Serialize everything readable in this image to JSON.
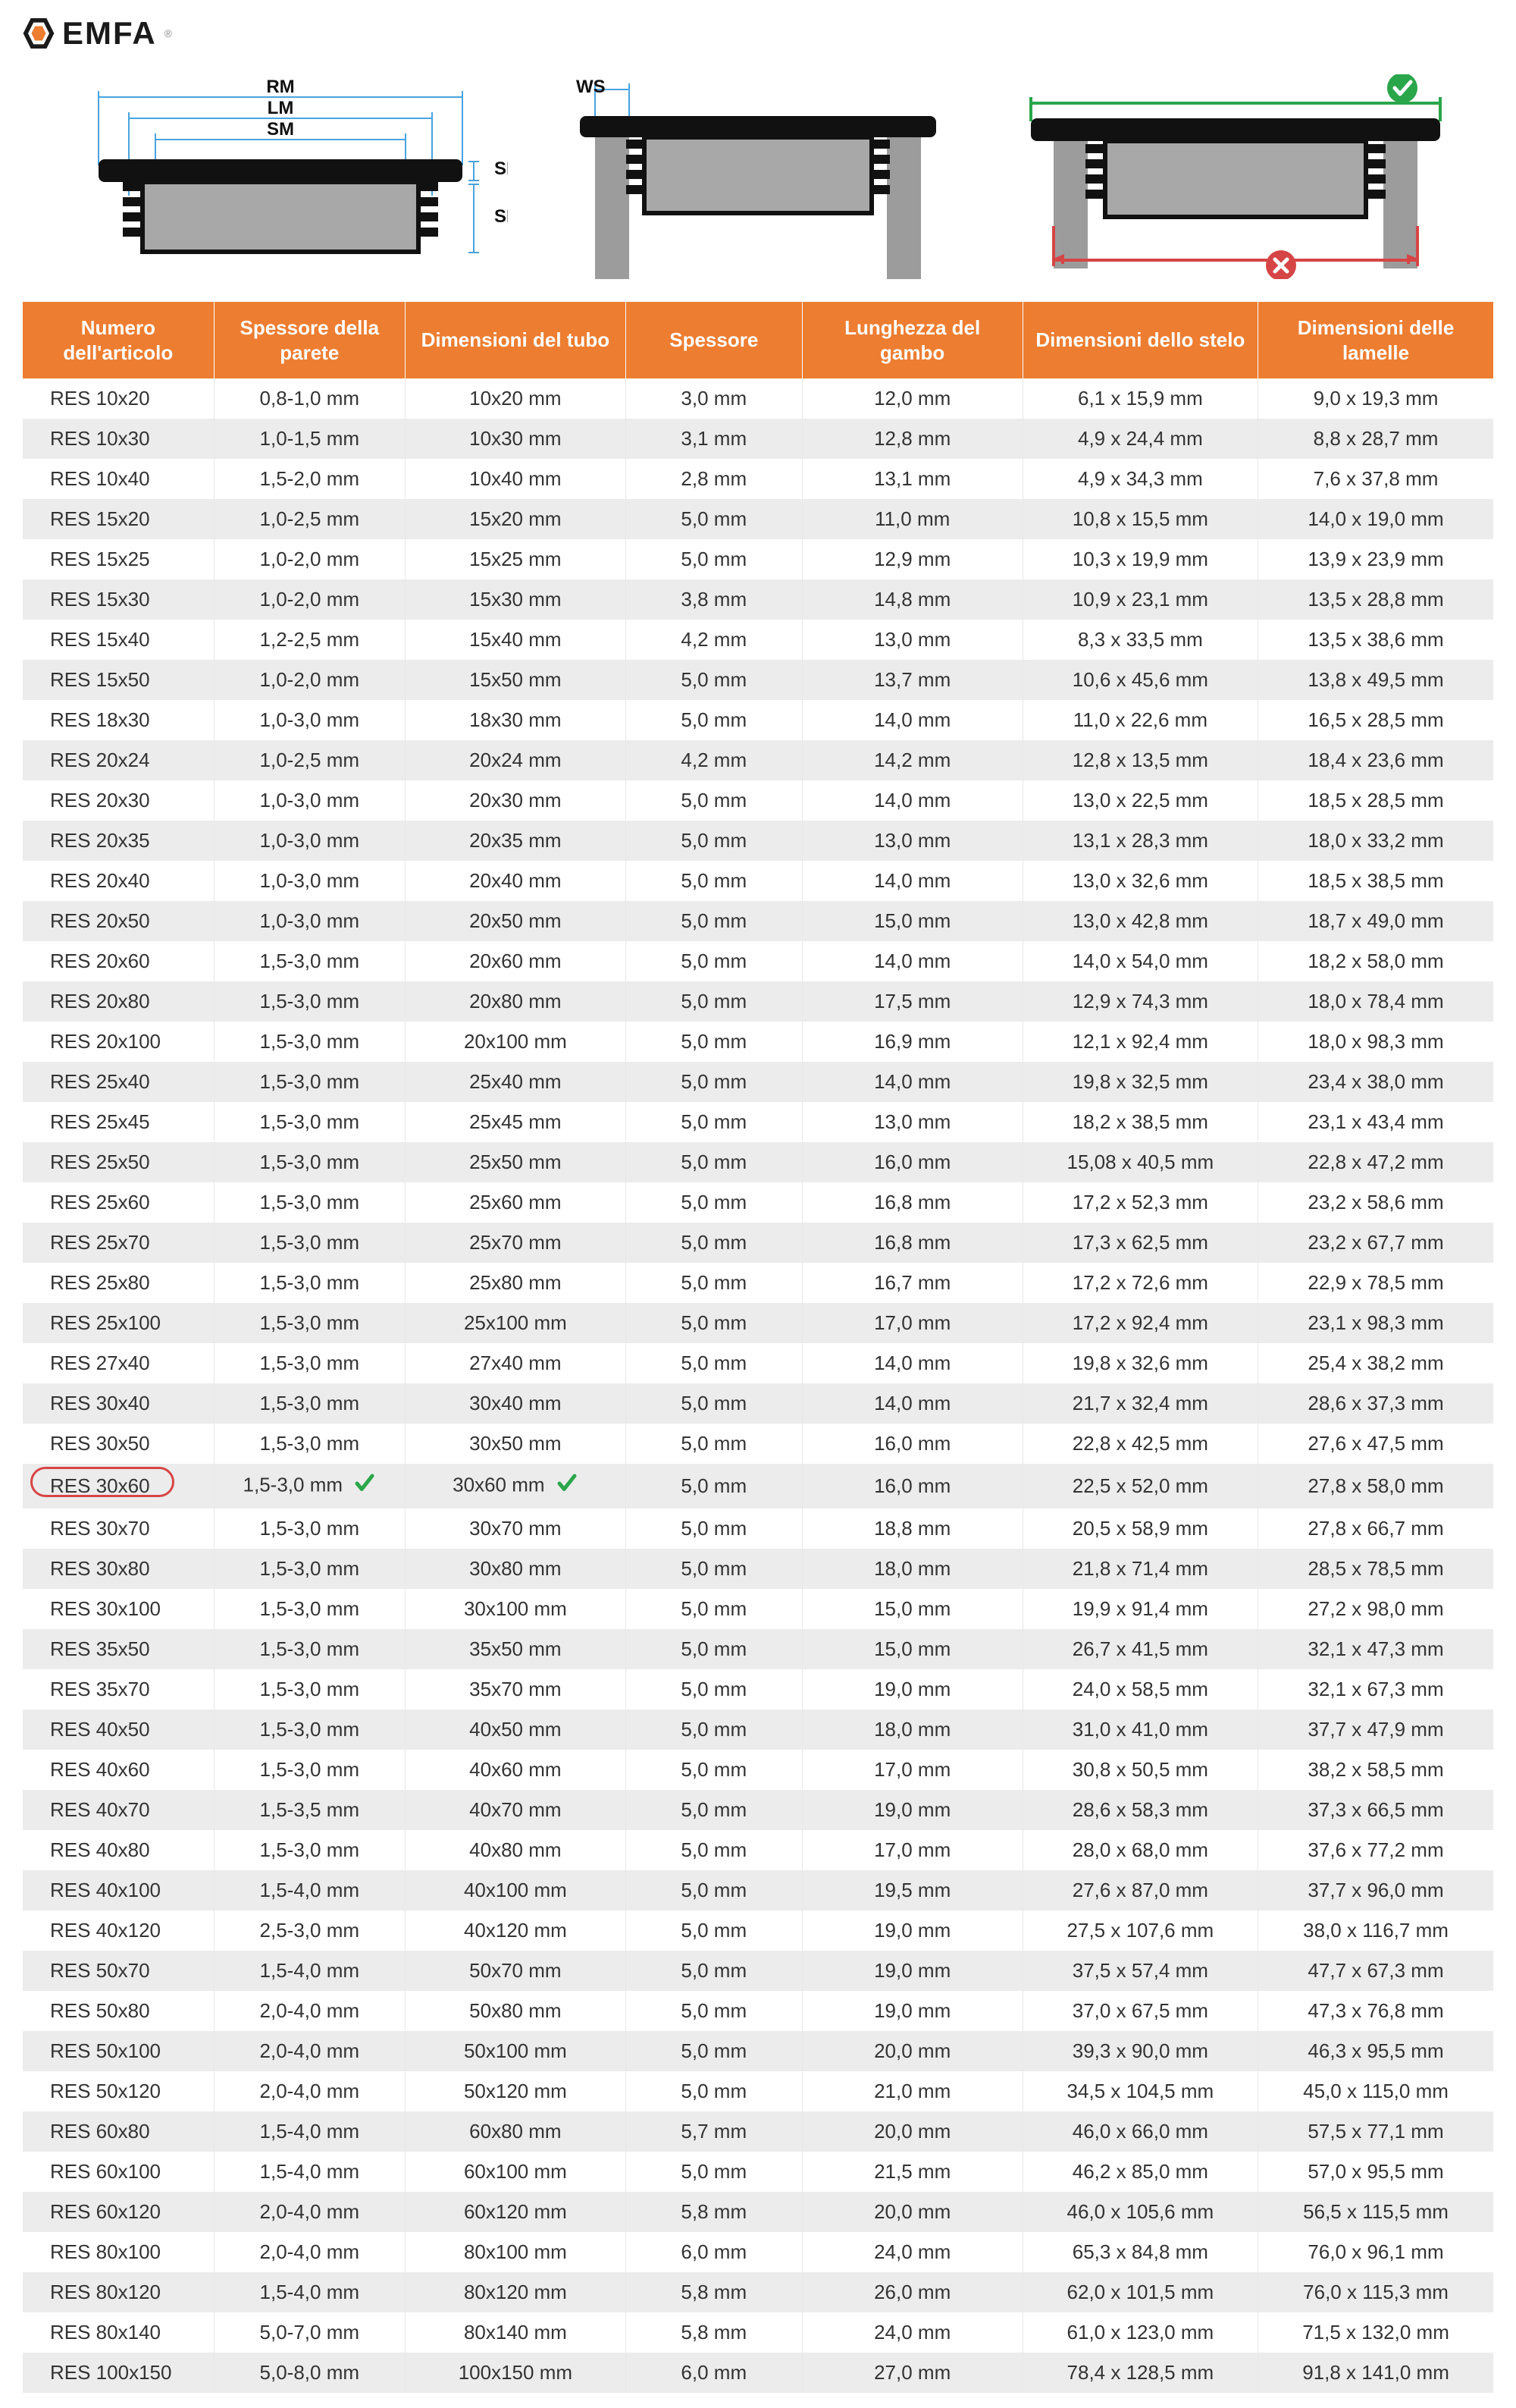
{
  "brand": {
    "name": "EMFA",
    "reg": "®"
  },
  "diagram_labels": {
    "rm": "RM",
    "lm": "LM",
    "sm": "SM",
    "sk": "SK",
    "se": "SE",
    "ws": "WS"
  },
  "status": {
    "ok_color": "#2aa64a",
    "bad_color": "#d64545",
    "guide_color": "#4aa3df"
  },
  "table": {
    "header_bg": "#ed7d31",
    "header_fg": "#ffffff",
    "row_odd_bg": "#ffffff",
    "row_even_bg": "#ececec",
    "highlight_color": "#d64545",
    "check_color": "#2aa64a",
    "columns": [
      "Numero dell'articolo",
      "Spessore della parete",
      "Dimensioni del tubo",
      "Spessore",
      "Lunghezza del gambo",
      "Dimensioni dello stelo",
      "Dimensioni delle lamelle"
    ],
    "highlight_row_index": 27,
    "rows": [
      [
        "RES 10x20",
        "0,8-1,0 mm",
        "10x20 mm",
        "3,0 mm",
        "12,0 mm",
        "6,1 x 15,9 mm",
        "9,0 x 19,3 mm"
      ],
      [
        "RES 10x30",
        "1,0-1,5 mm",
        "10x30 mm",
        "3,1 mm",
        "12,8 mm",
        "4,9 x 24,4 mm",
        "8,8 x 28,7 mm"
      ],
      [
        "RES 10x40",
        "1,5-2,0 mm",
        "10x40 mm",
        "2,8 mm",
        "13,1 mm",
        "4,9 x 34,3 mm",
        "7,6 x 37,8 mm"
      ],
      [
        "RES 15x20",
        "1,0-2,5 mm",
        "15x20 mm",
        "5,0 mm",
        "11,0 mm",
        "10,8 x 15,5 mm",
        "14,0 x 19,0 mm"
      ],
      [
        "RES 15x25",
        "1,0-2,0 mm",
        "15x25 mm",
        "5,0 mm",
        "12,9 mm",
        "10,3 x 19,9 mm",
        "13,9 x 23,9 mm"
      ],
      [
        "RES 15x30",
        "1,0-2,0 mm",
        "15x30 mm",
        "3,8 mm",
        "14,8 mm",
        "10,9 x 23,1 mm",
        "13,5 x 28,8 mm"
      ],
      [
        "RES 15x40",
        "1,2-2,5 mm",
        "15x40 mm",
        "4,2 mm",
        "13,0 mm",
        "8,3 x 33,5 mm",
        "13,5 x 38,6 mm"
      ],
      [
        "RES 15x50",
        "1,0-2,0 mm",
        "15x50 mm",
        "5,0 mm",
        "13,7 mm",
        "10,6 x 45,6 mm",
        "13,8 x 49,5 mm"
      ],
      [
        "RES 18x30",
        "1,0-3,0 mm",
        "18x30 mm",
        "5,0 mm",
        "14,0 mm",
        "11,0 x 22,6 mm",
        "16,5 x 28,5 mm"
      ],
      [
        "RES 20x24",
        "1,0-2,5 mm",
        "20x24 mm",
        "4,2 mm",
        "14,2 mm",
        "12,8 x 13,5 mm",
        "18,4 x 23,6 mm"
      ],
      [
        "RES 20x30",
        "1,0-3,0 mm",
        "20x30 mm",
        "5,0 mm",
        "14,0 mm",
        "13,0 x 22,5 mm",
        "18,5 x 28,5 mm"
      ],
      [
        "RES 20x35",
        "1,0-3,0 mm",
        "20x35 mm",
        "5,0 mm",
        "13,0 mm",
        "13,1 x 28,3 mm",
        "18,0 x 33,2 mm"
      ],
      [
        "RES 20x40",
        "1,0-3,0 mm",
        "20x40 mm",
        "5,0 mm",
        "14,0 mm",
        "13,0 x 32,6 mm",
        "18,5 x 38,5 mm"
      ],
      [
        "RES 20x50",
        "1,0-3,0 mm",
        "20x50 mm",
        "5,0 mm",
        "15,0 mm",
        "13,0 x 42,8 mm",
        "18,7 x 49,0 mm"
      ],
      [
        "RES 20x60",
        "1,5-3,0 mm",
        "20x60 mm",
        "5,0 mm",
        "14,0 mm",
        "14,0 x 54,0 mm",
        "18,2 x 58,0 mm"
      ],
      [
        "RES 20x80",
        "1,5-3,0 mm",
        "20x80 mm",
        "5,0 mm",
        "17,5 mm",
        "12,9 x 74,3 mm",
        "18,0 x 78,4 mm"
      ],
      [
        "RES 20x100",
        "1,5-3,0 mm",
        "20x100 mm",
        "5,0 mm",
        "16,9 mm",
        "12,1 x 92,4 mm",
        "18,0 x 98,3 mm"
      ],
      [
        "RES 25x40",
        "1,5-3,0 mm",
        "25x40 mm",
        "5,0 mm",
        "14,0 mm",
        "19,8 x 32,5 mm",
        "23,4 x 38,0 mm"
      ],
      [
        "RES 25x45",
        "1,5-3,0 mm",
        "25x45 mm",
        "5,0 mm",
        "13,0 mm",
        "18,2 x 38,5 mm",
        "23,1 x 43,4 mm"
      ],
      [
        "RES 25x50",
        "1,5-3,0 mm",
        "25x50 mm",
        "5,0 mm",
        "16,0 mm",
        "15,08 x 40,5 mm",
        "22,8 x 47,2 mm"
      ],
      [
        "RES 25x60",
        "1,5-3,0 mm",
        "25x60 mm",
        "5,0 mm",
        "16,8 mm",
        "17,2 x 52,3 mm",
        "23,2 x 58,6 mm"
      ],
      [
        "RES 25x70",
        "1,5-3,0 mm",
        "25x70 mm",
        "5,0 mm",
        "16,8 mm",
        "17,3 x 62,5 mm",
        "23,2 x 67,7 mm"
      ],
      [
        "RES 25x80",
        "1,5-3,0 mm",
        "25x80 mm",
        "5,0 mm",
        "16,7 mm",
        "17,2 x 72,6 mm",
        "22,9 x 78,5 mm"
      ],
      [
        "RES 25x100",
        "1,5-3,0 mm",
        "25x100 mm",
        "5,0 mm",
        "17,0 mm",
        "17,2 x 92,4 mm",
        "23,1 x 98,3 mm"
      ],
      [
        "RES 27x40",
        "1,5-3,0 mm",
        "27x40 mm",
        "5,0 mm",
        "14,0 mm",
        "19,8 x 32,6 mm",
        "25,4 x 38,2 mm"
      ],
      [
        "RES 30x40",
        "1,5-3,0 mm",
        "30x40 mm",
        "5,0 mm",
        "14,0 mm",
        "21,7 x 32,4 mm",
        "28,6 x 37,3 mm"
      ],
      [
        "RES 30x50",
        "1,5-3,0 mm",
        "30x50 mm",
        "5,0 mm",
        "16,0 mm",
        "22,8 x 42,5 mm",
        "27,6 x 47,5 mm"
      ],
      [
        "RES 30x60",
        "1,5-3,0 mm",
        "30x60 mm",
        "5,0 mm",
        "16,0 mm",
        "22,5 x 52,0 mm",
        "27,8 x 58,0 mm"
      ],
      [
        "RES 30x70",
        "1,5-3,0 mm",
        "30x70 mm",
        "5,0 mm",
        "18,8 mm",
        "20,5 x 58,9 mm",
        "27,8 x 66,7 mm"
      ],
      [
        "RES 30x80",
        "1,5-3,0 mm",
        "30x80 mm",
        "5,0 mm",
        "18,0 mm",
        "21,8 x 71,4 mm",
        "28,5 x 78,5 mm"
      ],
      [
        "RES 30x100",
        "1,5-3,0 mm",
        "30x100 mm",
        "5,0 mm",
        "15,0 mm",
        "19,9 x 91,4 mm",
        "27,2 x 98,0 mm"
      ],
      [
        "RES 35x50",
        "1,5-3,0 mm",
        "35x50 mm",
        "5,0 mm",
        "15,0 mm",
        "26,7 x 41,5 mm",
        "32,1 x 47,3 mm"
      ],
      [
        "RES 35x70",
        "1,5-3,0 mm",
        "35x70 mm",
        "5,0 mm",
        "19,0 mm",
        "24,0 x 58,5 mm",
        "32,1 x 67,3 mm"
      ],
      [
        "RES 40x50",
        "1,5-3,0 mm",
        "40x50 mm",
        "5,0 mm",
        "18,0 mm",
        "31,0 x 41,0 mm",
        "37,7 x 47,9 mm"
      ],
      [
        "RES 40x60",
        "1,5-3,0 mm",
        "40x60 mm",
        "5,0 mm",
        "17,0 mm",
        "30,8 x 50,5 mm",
        "38,2 x 58,5 mm"
      ],
      [
        "RES 40x70",
        "1,5-3,5 mm",
        "40x70 mm",
        "5,0 mm",
        "19,0 mm",
        "28,6 x 58,3 mm",
        "37,3 x 66,5 mm"
      ],
      [
        "RES 40x80",
        "1,5-3,0 mm",
        "40x80 mm",
        "5,0 mm",
        "17,0 mm",
        "28,0 x 68,0 mm",
        "37,6 x 77,2 mm"
      ],
      [
        "RES 40x100",
        "1,5-4,0 mm",
        "40x100 mm",
        "5,0 mm",
        "19,5 mm",
        "27,6 x 87,0 mm",
        "37,7 x 96,0 mm"
      ],
      [
        "RES 40x120",
        "2,5-3,0 mm",
        "40x120 mm",
        "5,0 mm",
        "19,0 mm",
        "27,5 x 107,6 mm",
        "38,0 x 116,7 mm"
      ],
      [
        "RES 50x70",
        "1,5-4,0 mm",
        "50x70 mm",
        "5,0 mm",
        "19,0 mm",
        "37,5 x 57,4 mm",
        "47,7 x 67,3 mm"
      ],
      [
        "RES 50x80",
        "2,0-4,0 mm",
        "50x80 mm",
        "5,0 mm",
        "19,0 mm",
        "37,0 x 67,5 mm",
        "47,3 x 76,8 mm"
      ],
      [
        "RES 50x100",
        "2,0-4,0 mm",
        "50x100 mm",
        "5,0 mm",
        "20,0 mm",
        "39,3 x 90,0 mm",
        "46,3 x 95,5 mm"
      ],
      [
        "RES 50x120",
        "2,0-4,0 mm",
        "50x120 mm",
        "5,0 mm",
        "21,0 mm",
        "34,5 x 104,5 mm",
        "45,0 x 115,0 mm"
      ],
      [
        "RES 60x80",
        "1,5-4,0 mm",
        "60x80 mm",
        "5,7 mm",
        "20,0 mm",
        "46,0 x 66,0 mm",
        "57,5 x 77,1 mm"
      ],
      [
        "RES 60x100",
        "1,5-4,0 mm",
        "60x100 mm",
        "5,0 mm",
        "21,5 mm",
        "46,2 x 85,0 mm",
        "57,0 x 95,5 mm"
      ],
      [
        "RES 60x120",
        "2,0-4,0 mm",
        "60x120 mm",
        "5,8 mm",
        "20,0 mm",
        "46,0 x 105,6 mm",
        "56,5 x 115,5 mm"
      ],
      [
        "RES 80x100",
        "2,0-4,0 mm",
        "80x100 mm",
        "6,0 mm",
        "24,0 mm",
        "65,3 x 84,8 mm",
        "76,0 x 96,1 mm"
      ],
      [
        "RES 80x120",
        "1,5-4,0 mm",
        "80x120 mm",
        "5,8 mm",
        "26,0 mm",
        "62,0 x 101,5 mm",
        "76,0 x 115,3 mm"
      ],
      [
        "RES 80x140",
        "5,0-7,0 mm",
        "80x140 mm",
        "5,8 mm",
        "24,0 mm",
        "61,0 x 123,0 mm",
        "71,5 x 132,0 mm"
      ],
      [
        "RES 100x150",
        "5,0-8,0 mm",
        "100x150 mm",
        "6,0 mm",
        "27,0 mm",
        "78,4 x 128,5 mm",
        "91,8 x 141,0 mm"
      ]
    ]
  }
}
